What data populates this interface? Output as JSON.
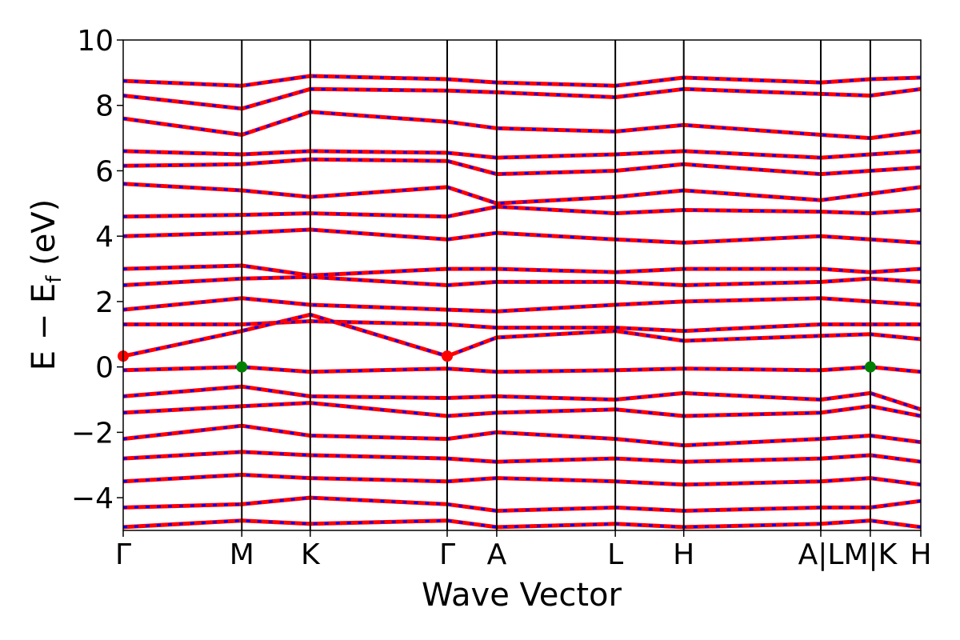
{
  "chart_data": {
    "type": "line",
    "title": "",
    "xlabel": "Wave Vector",
    "ylabel": "E − E_f (eV)",
    "ylabel_main": "E − E",
    "ylabel_sub": "f",
    "ylabel_unit": " (eV)",
    "ylim": [
      -5,
      10
    ],
    "yticks": [
      -4,
      -2,
      0,
      2,
      4,
      6,
      8,
      10
    ],
    "ytick_labels": [
      "−4",
      "−2",
      "0",
      "2",
      "4",
      "6",
      "8",
      "10"
    ],
    "kpath_ticks": [
      {
        "k": 0.0,
        "label": "Γ"
      },
      {
        "k": 0.1487,
        "label": "M"
      },
      {
        "k": 0.2345,
        "label": "K"
      },
      {
        "k": 0.4062,
        "label": "Γ"
      },
      {
        "k": 0.4683,
        "label": "A"
      },
      {
        "k": 0.617,
        "label": "L"
      },
      {
        "k": 0.7028,
        "label": "H"
      },
      {
        "k": 0.8746,
        "label": "A|L"
      },
      {
        "k": 0.9367,
        "label": "M|K"
      },
      {
        "k": 1.0,
        "label": "H"
      }
    ],
    "xlim": [
      0,
      1
    ],
    "grid": false,
    "band_colors": {
      "spin_up": "#ff0000",
      "spin_down": "#0000ff"
    },
    "vbm": {
      "energy": 0.0,
      "k_points": [
        0.1487,
        0.9367
      ],
      "color": "#008000"
    },
    "cbm": {
      "energy": 0.33,
      "k_points": [
        0.0,
        0.4062
      ],
      "color": "#ff0000"
    },
    "series": [
      {
        "values": [
          [
            0,
            8.75
          ],
          [
            0.1487,
            8.6
          ],
          [
            0.2345,
            8.9
          ],
          [
            0.4062,
            8.8
          ],
          [
            0.4683,
            8.7
          ],
          [
            0.617,
            8.6
          ],
          [
            0.7028,
            8.85
          ],
          [
            0.8746,
            8.7
          ],
          [
            0.9367,
            8.8
          ],
          [
            1,
            8.85
          ]
        ]
      },
      {
        "values": [
          [
            0,
            8.3
          ],
          [
            0.1487,
            7.9
          ],
          [
            0.2345,
            8.5
          ],
          [
            0.4062,
            8.45
          ],
          [
            0.4683,
            8.4
          ],
          [
            0.617,
            8.25
          ],
          [
            0.7028,
            8.5
          ],
          [
            0.8746,
            8.35
          ],
          [
            0.9367,
            8.3
          ],
          [
            1,
            8.5
          ]
        ]
      },
      {
        "values": [
          [
            0,
            7.6
          ],
          [
            0.1487,
            7.1
          ],
          [
            0.2345,
            7.8
          ],
          [
            0.4062,
            7.5
          ],
          [
            0.4683,
            7.3
          ],
          [
            0.617,
            7.2
          ],
          [
            0.7028,
            7.4
          ],
          [
            0.8746,
            7.1
          ],
          [
            0.9367,
            7.0
          ],
          [
            1,
            7.2
          ]
        ]
      },
      {
        "values": [
          [
            0,
            6.6
          ],
          [
            0.1487,
            6.5
          ],
          [
            0.2345,
            6.6
          ],
          [
            0.4062,
            6.55
          ],
          [
            0.4683,
            6.4
          ],
          [
            0.617,
            6.5
          ],
          [
            0.7028,
            6.6
          ],
          [
            0.8746,
            6.4
          ],
          [
            0.9367,
            6.5
          ],
          [
            1,
            6.6
          ]
        ]
      },
      {
        "values": [
          [
            0,
            6.15
          ],
          [
            0.1487,
            6.2
          ],
          [
            0.2345,
            6.35
          ],
          [
            0.4062,
            6.3
          ],
          [
            0.4683,
            5.9
          ],
          [
            0.617,
            6.0
          ],
          [
            0.7028,
            6.2
          ],
          [
            0.8746,
            5.9
          ],
          [
            0.9367,
            6.0
          ],
          [
            1,
            6.1
          ]
        ]
      },
      {
        "values": [
          [
            0,
            5.6
          ],
          [
            0.1487,
            5.4
          ],
          [
            0.2345,
            5.2
          ],
          [
            0.4062,
            5.5
          ],
          [
            0.4683,
            5.0
          ],
          [
            0.617,
            5.2
          ],
          [
            0.7028,
            5.4
          ],
          [
            0.8746,
            5.1
          ],
          [
            0.9367,
            5.3
          ],
          [
            1,
            5.5
          ]
        ]
      },
      {
        "values": [
          [
            0,
            4.6
          ],
          [
            0.1487,
            4.65
          ],
          [
            0.2345,
            4.7
          ],
          [
            0.4062,
            4.6
          ],
          [
            0.4683,
            4.9
          ],
          [
            0.617,
            4.7
          ],
          [
            0.7028,
            4.8
          ],
          [
            0.8746,
            4.75
          ],
          [
            0.9367,
            4.7
          ],
          [
            1,
            4.8
          ]
        ]
      },
      {
        "values": [
          [
            0,
            4.0
          ],
          [
            0.1487,
            4.1
          ],
          [
            0.2345,
            4.2
          ],
          [
            0.4062,
            3.9
          ],
          [
            0.4683,
            4.1
          ],
          [
            0.617,
            3.9
          ],
          [
            0.7028,
            3.8
          ],
          [
            0.8746,
            4.0
          ],
          [
            0.9367,
            3.9
          ],
          [
            1,
            3.8
          ]
        ]
      },
      {
        "values": [
          [
            0,
            3.0
          ],
          [
            0.1487,
            3.1
          ],
          [
            0.2345,
            2.8
          ],
          [
            0.4062,
            3.0
          ],
          [
            0.4683,
            3.0
          ],
          [
            0.617,
            2.9
          ],
          [
            0.7028,
            3.0
          ],
          [
            0.8746,
            3.0
          ],
          [
            0.9367,
            2.9
          ],
          [
            1,
            3.0
          ]
        ]
      },
      {
        "values": [
          [
            0,
            2.5
          ],
          [
            0.1487,
            2.7
          ],
          [
            0.2345,
            2.75
          ],
          [
            0.4062,
            2.5
          ],
          [
            0.4683,
            2.6
          ],
          [
            0.617,
            2.6
          ],
          [
            0.7028,
            2.5
          ],
          [
            0.8746,
            2.6
          ],
          [
            0.9367,
            2.7
          ],
          [
            1,
            2.6
          ]
        ]
      },
      {
        "values": [
          [
            0,
            1.75
          ],
          [
            0.1487,
            2.1
          ],
          [
            0.2345,
            1.9
          ],
          [
            0.4062,
            1.75
          ],
          [
            0.4683,
            1.7
          ],
          [
            0.617,
            1.9
          ],
          [
            0.7028,
            2.0
          ],
          [
            0.8746,
            2.1
          ],
          [
            0.9367,
            2.0
          ],
          [
            1,
            1.9
          ]
        ]
      },
      {
        "values": [
          [
            0,
            1.3
          ],
          [
            0.1487,
            1.3
          ],
          [
            0.2345,
            1.4
          ],
          [
            0.4062,
            1.3
          ],
          [
            0.4683,
            1.2
          ],
          [
            0.617,
            1.2
          ],
          [
            0.7028,
            1.1
          ],
          [
            0.8746,
            1.3
          ],
          [
            0.9367,
            1.3
          ],
          [
            1,
            1.3
          ]
        ]
      },
      {
        "values": [
          [
            0,
            0.33
          ],
          [
            0.1487,
            1.1
          ],
          [
            0.2345,
            1.6
          ],
          [
            0.4062,
            0.33
          ],
          [
            0.4683,
            0.9
          ],
          [
            0.617,
            1.1
          ],
          [
            0.7028,
            0.8
          ],
          [
            0.8746,
            0.95
          ],
          [
            0.9367,
            1.0
          ],
          [
            1,
            0.85
          ]
        ]
      },
      {
        "values": [
          [
            0,
            -0.1
          ],
          [
            0.1487,
            0.0
          ],
          [
            0.2345,
            -0.15
          ],
          [
            0.4062,
            -0.05
          ],
          [
            0.4683,
            -0.15
          ],
          [
            0.617,
            -0.1
          ],
          [
            0.7028,
            -0.05
          ],
          [
            0.8746,
            -0.1
          ],
          [
            0.9367,
            0.0
          ],
          [
            1,
            -0.15
          ]
        ]
      },
      {
        "values": [
          [
            0,
            -0.9
          ],
          [
            0.1487,
            -0.6
          ],
          [
            0.2345,
            -0.9
          ],
          [
            0.4062,
            -0.95
          ],
          [
            0.4683,
            -0.9
          ],
          [
            0.617,
            -1.0
          ],
          [
            0.7028,
            -0.8
          ],
          [
            0.8746,
            -1.0
          ],
          [
            0.9367,
            -0.8
          ],
          [
            1,
            -1.3
          ]
        ]
      },
      {
        "values": [
          [
            0,
            -1.4
          ],
          [
            0.1487,
            -1.2
          ],
          [
            0.2345,
            -1.1
          ],
          [
            0.4062,
            -1.5
          ],
          [
            0.4683,
            -1.4
          ],
          [
            0.617,
            -1.3
          ],
          [
            0.7028,
            -1.5
          ],
          [
            0.8746,
            -1.4
          ],
          [
            0.9367,
            -1.2
          ],
          [
            1,
            -1.5
          ]
        ]
      },
      {
        "values": [
          [
            0,
            -2.2
          ],
          [
            0.1487,
            -1.8
          ],
          [
            0.2345,
            -2.1
          ],
          [
            0.4062,
            -2.2
          ],
          [
            0.4683,
            -2.0
          ],
          [
            0.617,
            -2.2
          ],
          [
            0.7028,
            -2.4
          ],
          [
            0.8746,
            -2.2
          ],
          [
            0.9367,
            -2.1
          ],
          [
            1,
            -2.3
          ]
        ]
      },
      {
        "values": [
          [
            0,
            -2.8
          ],
          [
            0.1487,
            -2.6
          ],
          [
            0.2345,
            -2.7
          ],
          [
            0.4062,
            -2.8
          ],
          [
            0.4683,
            -2.9
          ],
          [
            0.617,
            -2.8
          ],
          [
            0.7028,
            -2.9
          ],
          [
            0.8746,
            -2.8
          ],
          [
            0.9367,
            -2.7
          ],
          [
            1,
            -2.9
          ]
        ]
      },
      {
        "values": [
          [
            0,
            -3.5
          ],
          [
            0.1487,
            -3.3
          ],
          [
            0.2345,
            -3.4
          ],
          [
            0.4062,
            -3.5
          ],
          [
            0.4683,
            -3.4
          ],
          [
            0.617,
            -3.5
          ],
          [
            0.7028,
            -3.6
          ],
          [
            0.8746,
            -3.5
          ],
          [
            0.9367,
            -3.4
          ],
          [
            1,
            -3.6
          ]
        ]
      },
      {
        "values": [
          [
            0,
            -4.3
          ],
          [
            0.1487,
            -4.2
          ],
          [
            0.2345,
            -4.0
          ],
          [
            0.4062,
            -4.2
          ],
          [
            0.4683,
            -4.4
          ],
          [
            0.617,
            -4.3
          ],
          [
            0.7028,
            -4.4
          ],
          [
            0.8746,
            -4.3
          ],
          [
            0.9367,
            -4.3
          ],
          [
            1,
            -4.1
          ]
        ]
      },
      {
        "values": [
          [
            0,
            -4.9
          ],
          [
            0.1487,
            -4.7
          ],
          [
            0.2345,
            -4.8
          ],
          [
            0.4062,
            -4.7
          ],
          [
            0.4683,
            -4.9
          ],
          [
            0.617,
            -4.8
          ],
          [
            0.7028,
            -4.9
          ],
          [
            0.8746,
            -4.8
          ],
          [
            0.9367,
            -4.7
          ],
          [
            1,
            -4.9
          ]
        ]
      }
    ]
  }
}
